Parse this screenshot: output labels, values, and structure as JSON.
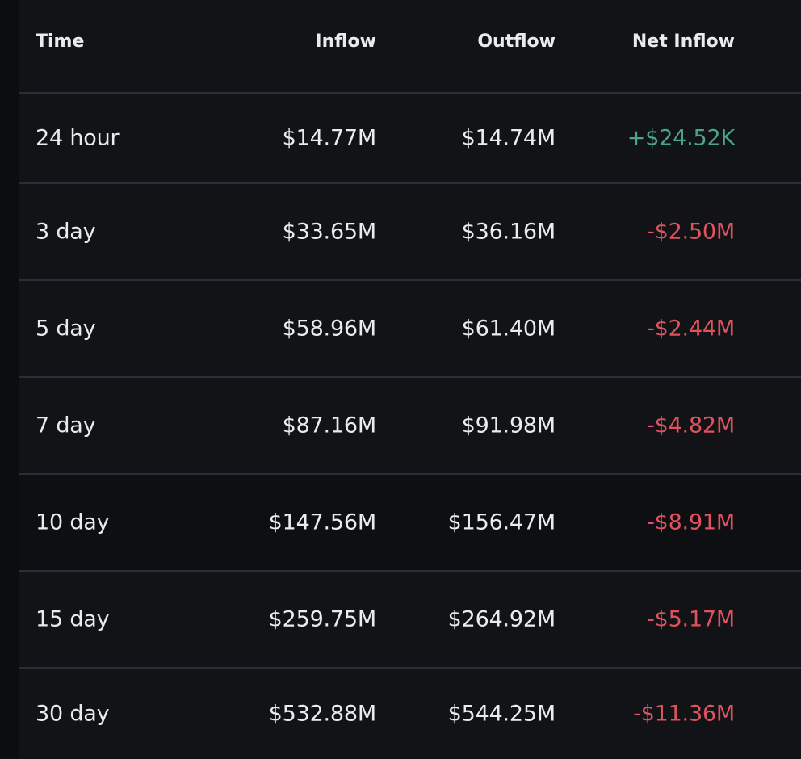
{
  "table": {
    "headers": {
      "time": "Time",
      "inflow": "Inflow",
      "outflow": "Outflow",
      "net_inflow": "Net Inflow"
    },
    "rows": [
      {
        "time": "24 hour",
        "inflow": "$14.77M",
        "outflow": "$14.74M",
        "net_inflow": "+$24.52K",
        "net_sign": "positive"
      },
      {
        "time": "3 day",
        "inflow": "$33.65M",
        "outflow": "$36.16M",
        "net_inflow": "-$2.50M",
        "net_sign": "negative"
      },
      {
        "time": "5 day",
        "inflow": "$58.96M",
        "outflow": "$61.40M",
        "net_inflow": "-$2.44M",
        "net_sign": "negative"
      },
      {
        "time": "7 day",
        "inflow": "$87.16M",
        "outflow": "$91.98M",
        "net_inflow": "-$4.82M",
        "net_sign": "negative"
      },
      {
        "time": "10 day",
        "inflow": "$147.56M",
        "outflow": "$156.47M",
        "net_inflow": "-$8.91M",
        "net_sign": "negative"
      },
      {
        "time": "15 day",
        "inflow": "$259.75M",
        "outflow": "$264.92M",
        "net_inflow": "-$5.17M",
        "net_sign": "negative"
      },
      {
        "time": "30 day",
        "inflow": "$532.88M",
        "outflow": "$544.25M",
        "net_inflow": "-$11.36M",
        "net_sign": "negative"
      }
    ]
  },
  "colors": {
    "background": "#111317",
    "positive": "#4ba48a",
    "negative": "#e0525d",
    "divider": "#2a2e35",
    "text": "#e9ecef"
  }
}
